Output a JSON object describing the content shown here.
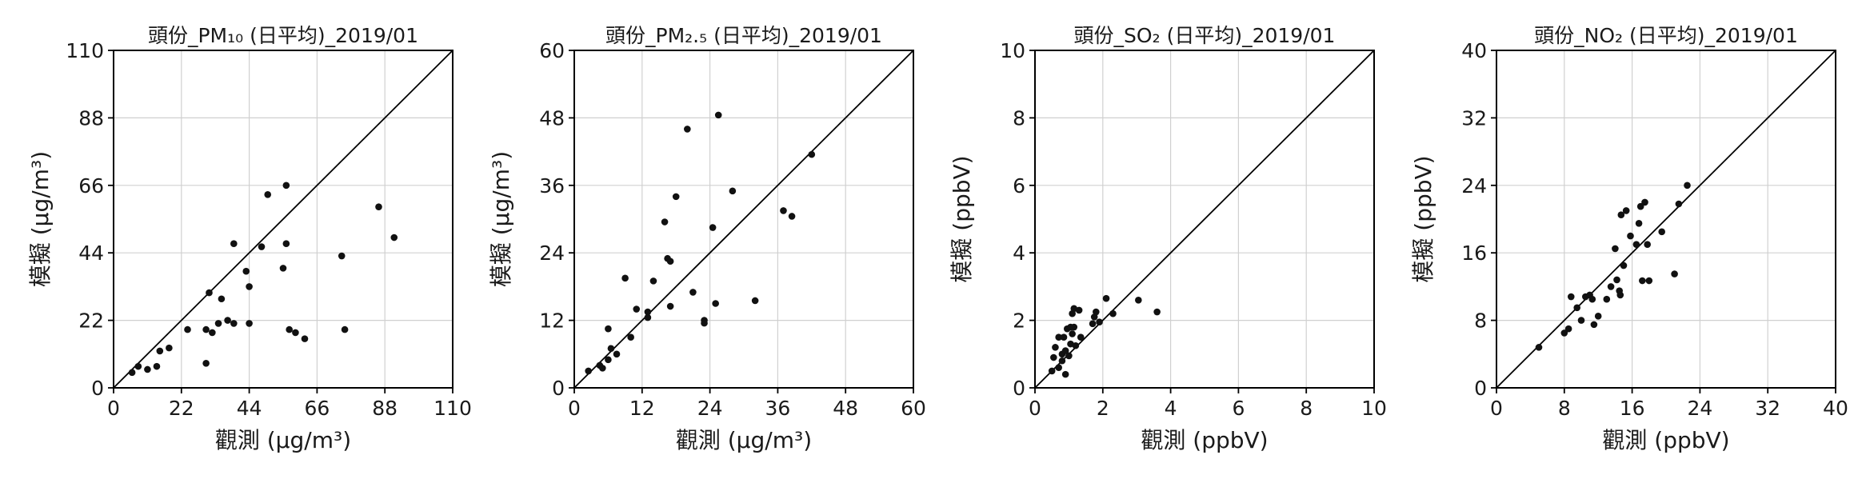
{
  "chart_data": [
    {
      "type": "scatter",
      "title": "頭份_PM₁₀ (日平均)_2019/01",
      "xlabel": "觀測 (μg/m³)",
      "ylabel": "模擬 (μg/m³)",
      "xlim": [
        0,
        110
      ],
      "ylim": [
        0,
        110
      ],
      "xticks": [
        0,
        22,
        44,
        66,
        88,
        110
      ],
      "yticks": [
        0,
        22,
        44,
        66,
        88,
        110
      ],
      "grid": true,
      "diagonal": "1:1",
      "points": [
        [
          6,
          5
        ],
        [
          8,
          7
        ],
        [
          11,
          6
        ],
        [
          14,
          7
        ],
        [
          15,
          12
        ],
        [
          18,
          13
        ],
        [
          24,
          19
        ],
        [
          30,
          19
        ],
        [
          30,
          8
        ],
        [
          31,
          31
        ],
        [
          32,
          18
        ],
        [
          34,
          21
        ],
        [
          35,
          29
        ],
        [
          37,
          22
        ],
        [
          39,
          21
        ],
        [
          39,
          47
        ],
        [
          43,
          38
        ],
        [
          44,
          21
        ],
        [
          44,
          33
        ],
        [
          48,
          46
        ],
        [
          50,
          63
        ],
        [
          55,
          39
        ],
        [
          56,
          47
        ],
        [
          56,
          66
        ],
        [
          57,
          19
        ],
        [
          59,
          18
        ],
        [
          62,
          16
        ],
        [
          74,
          43
        ],
        [
          75,
          19
        ],
        [
          86,
          59
        ],
        [
          91,
          49
        ]
      ]
    },
    {
      "type": "scatter",
      "title": "頭份_PM₂.₅ (日平均)_2019/01",
      "xlabel": "觀測 (μg/m³)",
      "ylabel": "模擬 (μg/m³)",
      "xlim": [
        0,
        60
      ],
      "ylim": [
        0,
        60
      ],
      "xticks": [
        0,
        12,
        24,
        36,
        48,
        60
      ],
      "yticks": [
        0,
        12,
        24,
        36,
        48,
        60
      ],
      "grid": true,
      "diagonal": "1:1",
      "points": [
        [
          2.5,
          3
        ],
        [
          4.5,
          4
        ],
        [
          5,
          3.5
        ],
        [
          6,
          5
        ],
        [
          6,
          10.5
        ],
        [
          6.5,
          7
        ],
        [
          7.5,
          6
        ],
        [
          9,
          19.5
        ],
        [
          10,
          9
        ],
        [
          11,
          14
        ],
        [
          13,
          13.5
        ],
        [
          13,
          12.5
        ],
        [
          14,
          19
        ],
        [
          16,
          29.5
        ],
        [
          16.5,
          23
        ],
        [
          17,
          22.5
        ],
        [
          17,
          14.5
        ],
        [
          18,
          34
        ],
        [
          20,
          46
        ],
        [
          21,
          17
        ],
        [
          23,
          12
        ],
        [
          23,
          11.5
        ],
        [
          24.5,
          28.5
        ],
        [
          25,
          15
        ],
        [
          25.5,
          48.5
        ],
        [
          28,
          35
        ],
        [
          32,
          15.5
        ],
        [
          37,
          31.5
        ],
        [
          38.5,
          30.5
        ],
        [
          42,
          41.5
        ]
      ]
    },
    {
      "type": "scatter",
      "title": "頭份_SO₂ (日平均)_2019/01",
      "xlabel": "觀測 (ppbV)",
      "ylabel": "模擬 (ppbV)",
      "xlim": [
        0,
        10
      ],
      "ylim": [
        0,
        10
      ],
      "xticks": [
        0,
        2,
        4,
        6,
        8,
        10
      ],
      "yticks": [
        0,
        2,
        4,
        6,
        8,
        10
      ],
      "grid": true,
      "diagonal": "1:1",
      "points": [
        [
          0.5,
          0.5
        ],
        [
          0.55,
          0.9
        ],
        [
          0.6,
          1.2
        ],
        [
          0.7,
          0.6
        ],
        [
          0.7,
          1.5
        ],
        [
          0.8,
          0.8
        ],
        [
          0.8,
          1.0
        ],
        [
          0.85,
          1.5
        ],
        [
          0.9,
          0.4
        ],
        [
          0.9,
          1.1
        ],
        [
          0.95,
          1.75
        ],
        [
          1.0,
          0.95
        ],
        [
          1.05,
          1.3
        ],
        [
          1.05,
          1.8
        ],
        [
          1.1,
          1.6
        ],
        [
          1.1,
          2.2
        ],
        [
          1.15,
          1.8
        ],
        [
          1.15,
          2.35
        ],
        [
          1.2,
          1.25
        ],
        [
          1.3,
          2.3
        ],
        [
          1.35,
          1.5
        ],
        [
          1.7,
          1.9
        ],
        [
          1.75,
          2.1
        ],
        [
          1.8,
          2.25
        ],
        [
          1.9,
          1.95
        ],
        [
          2.1,
          2.65
        ],
        [
          2.3,
          2.2
        ],
        [
          3.05,
          2.6
        ],
        [
          3.6,
          2.25
        ]
      ]
    },
    {
      "type": "scatter",
      "title": "頭份_NO₂ (日平均)_2019/01",
      "xlabel": "觀測 (ppbV)",
      "ylabel": "模擬 (ppbV)",
      "xlim": [
        0,
        40
      ],
      "ylim": [
        0,
        40
      ],
      "xticks": [
        0,
        8,
        16,
        24,
        32,
        40
      ],
      "yticks": [
        0,
        8,
        16,
        24,
        32,
        40
      ],
      "grid": true,
      "diagonal": "1:1",
      "points": [
        [
          5,
          4.8
        ],
        [
          8,
          6.5
        ],
        [
          8.5,
          7
        ],
        [
          8.8,
          10.8
        ],
        [
          9.5,
          9.5
        ],
        [
          10,
          8
        ],
        [
          10.5,
          10.8
        ],
        [
          11,
          11
        ],
        [
          11.3,
          10.5
        ],
        [
          11.5,
          7.5
        ],
        [
          12,
          8.5
        ],
        [
          13,
          10.5
        ],
        [
          13.5,
          12
        ],
        [
          14,
          16.5
        ],
        [
          14.2,
          12.8
        ],
        [
          14.5,
          11.5
        ],
        [
          14.6,
          11
        ],
        [
          14.7,
          20.5
        ],
        [
          15,
          14.5
        ],
        [
          15.3,
          21
        ],
        [
          15.8,
          18
        ],
        [
          16.5,
          17
        ],
        [
          16.8,
          19.5
        ],
        [
          17,
          21.5
        ],
        [
          17.2,
          12.7
        ],
        [
          17.5,
          22
        ],
        [
          17.8,
          17
        ],
        [
          18,
          12.7
        ],
        [
          19.5,
          18.5
        ],
        [
          21,
          13.5
        ],
        [
          21.5,
          21.8
        ],
        [
          22.5,
          24
        ]
      ]
    }
  ]
}
